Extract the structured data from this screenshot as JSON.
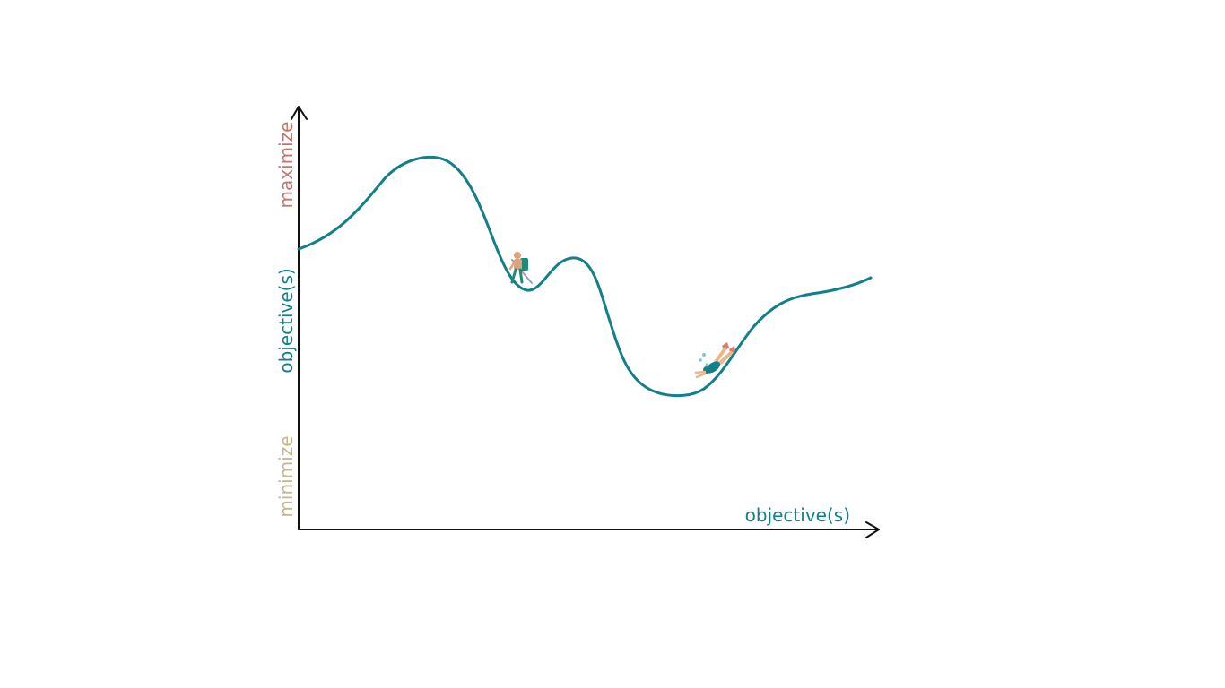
{
  "diagram": {
    "y_axis_labels": {
      "maximize": "maximize",
      "objective": "objective(s)",
      "minimize": "minimize"
    },
    "x_axis_label": "objective(s)",
    "colors": {
      "curve": "#127f8a",
      "axis": "#111111",
      "maximize": "#c9726b",
      "objective": "#127f8a",
      "minimize": "#c4b48f",
      "hiker_backpack": "#1f8a7a",
      "hiker_body": "#e0a27a",
      "hiker_pole": "#9aa0a6",
      "diver_fins": "#e07a6a",
      "diver_suit": "#127f8a",
      "diver_skin": "#f0b48a",
      "bubbles": "#7cc4e6"
    },
    "figures": {
      "hiker": "hiker-icon",
      "diver": "scuba-diver-icon"
    }
  }
}
